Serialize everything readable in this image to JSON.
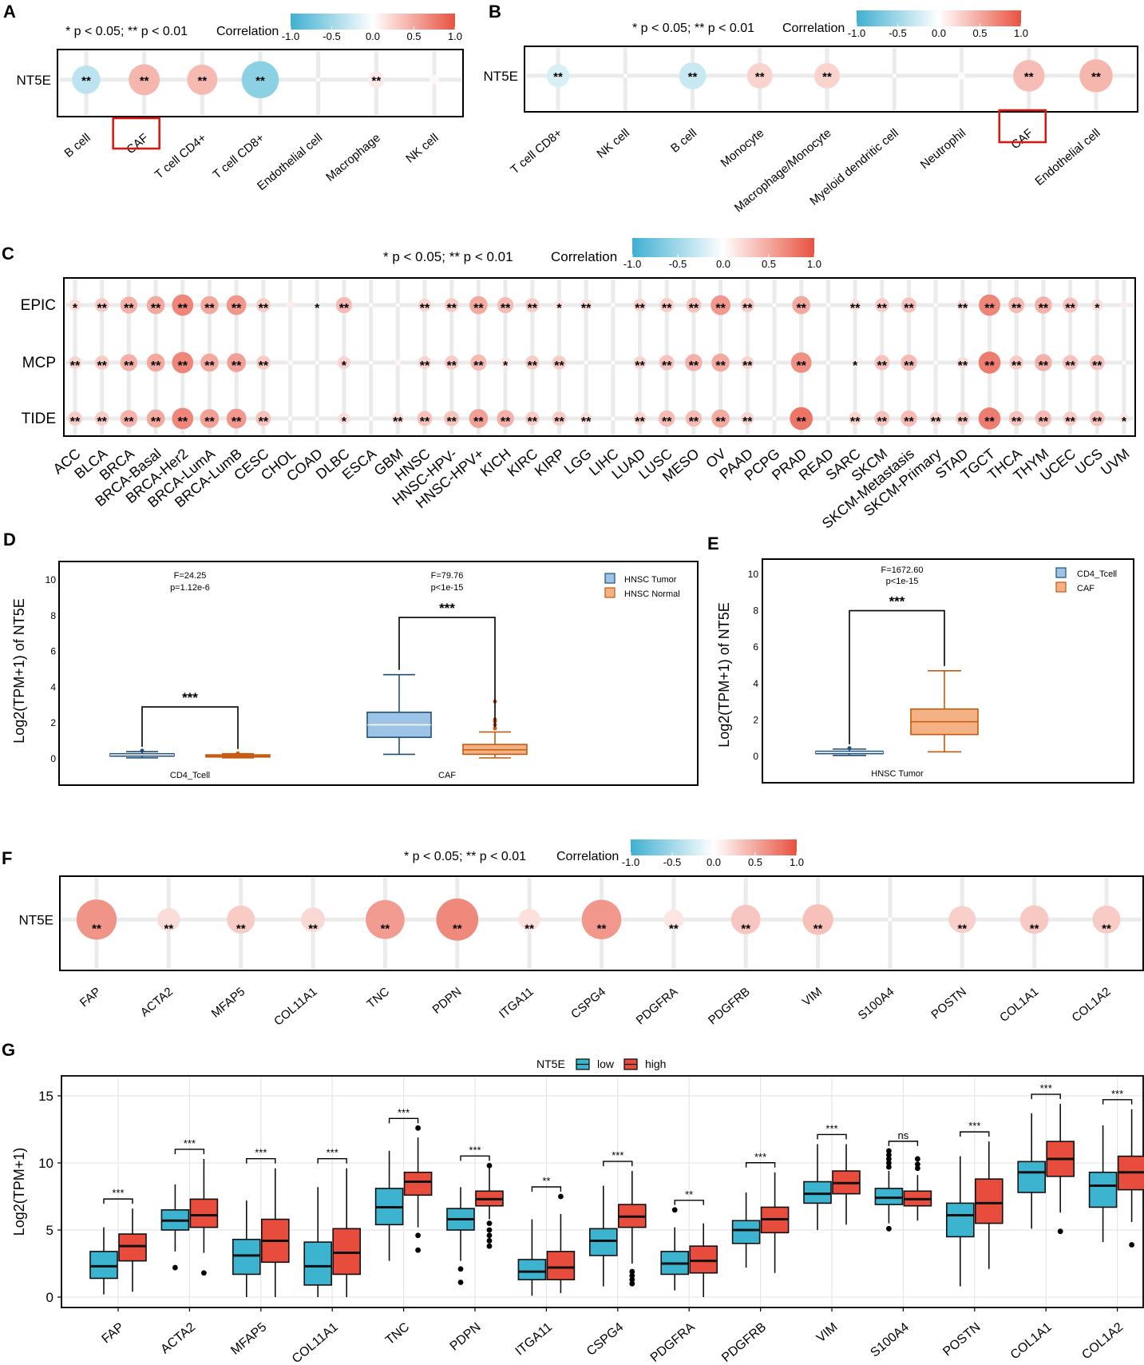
{
  "colors": {
    "neg": "#3FB0D2",
    "pos": "#E8523F",
    "low": "#3CB4CF",
    "high": "#E74C3C",
    "hnsc_tumor": "#9DC3E6",
    "hnsc_tumor_dark": "#1F4E79",
    "hnsc_normal": "#F4B183",
    "hnsc_normal_dark": "#C55A11"
  },
  "chart_data": [
    {
      "panel": "A",
      "type": "heatmap",
      "sig_note": "* p < 0.05; ** p < 0.01",
      "colorbar": {
        "title": "Correlation",
        "ticks": [
          "-1.0",
          "-0.5",
          "0.0",
          "0.5",
          "1.0"
        ],
        "range": [
          -1,
          1
        ]
      },
      "row": "NT5E",
      "categories": [
        "B cell",
        "CAF",
        "T cell CD4+",
        "T cell CD8+",
        "Endothelial cell",
        "Macrophage",
        "NK cell"
      ],
      "values": [
        -0.35,
        0.42,
        0.4,
        -0.6,
        0.0,
        0.12,
        0.04
      ],
      "labels": [
        "**",
        "**",
        "**",
        "**",
        "",
        "**",
        ""
      ],
      "highlight": "CAF"
    },
    {
      "panel": "B",
      "type": "heatmap",
      "sig_note": "* p < 0.05; ** p < 0.01",
      "colorbar": {
        "title": "Correlation",
        "ticks": [
          "-1.0",
          "-0.5",
          "0.0",
          "0.5",
          "1.0"
        ],
        "range": [
          -1,
          1
        ]
      },
      "row": "NT5E",
      "categories": [
        "T cell CD8+",
        "NK cell",
        "B cell",
        "Monocyte",
        "Macrophage/Monocyte",
        "Myeloid dendritic cell",
        "Neutrophil",
        "CAF",
        "Endothelial cell"
      ],
      "values": [
        -0.2,
        0.0,
        -0.28,
        0.25,
        0.25,
        0.0,
        0.02,
        0.38,
        0.42
      ],
      "labels": [
        "**",
        "",
        "**",
        "**",
        "**",
        "",
        "",
        "**",
        "**"
      ],
      "highlight": "CAF"
    },
    {
      "panel": "C",
      "type": "heatmap",
      "sig_note": "* p < 0.05; ** p < 0.01",
      "colorbar": {
        "title": "Correlation",
        "ticks": [
          "-1.0",
          "-0.5",
          "0.0",
          "0.5",
          "1.0"
        ],
        "range": [
          -1,
          1
        ]
      },
      "rows": [
        "EPIC",
        "MCP",
        "TIDE"
      ],
      "categories": [
        "ACC",
        "BLCA",
        "BRCA",
        "BRCA-Basal",
        "BRCA-Her2",
        "BRCA-LumA",
        "BRCA-LumB",
        "CESC",
        "CHOL",
        "COAD",
        "DLBC",
        "ESCA",
        "GBM",
        "HNSC",
        "HNSC-HPV-",
        "HNSC-HPV+",
        "KICH",
        "KIRC",
        "KIRP",
        "LGG",
        "LIHC",
        "LUAD",
        "LUSC",
        "MESO",
        "OV",
        "PAAD",
        "PCPG",
        "PRAD",
        "READ",
        "SARC",
        "SKCM",
        "SKCM-Metastasis",
        "SKCM-Primary",
        "STAD",
        "TGCT",
        "THCA",
        "THYM",
        "UCEC",
        "UCS",
        "UVM"
      ],
      "values": [
        [
          0.2,
          0.3,
          0.45,
          0.5,
          0.7,
          0.5,
          0.6,
          0.3,
          0.1,
          0.05,
          0.4,
          0.02,
          0.0,
          0.25,
          0.3,
          0.5,
          0.4,
          0.3,
          0.15,
          0.2,
          0.0,
          0.25,
          0.3,
          0.35,
          0.6,
          0.3,
          0.0,
          0.5,
          0.0,
          0.2,
          0.3,
          0.35,
          0.0,
          0.2,
          0.7,
          0.4,
          0.45,
          0.35,
          0.2,
          0.1
        ],
        [
          0.25,
          0.3,
          0.45,
          0.5,
          0.7,
          0.5,
          0.55,
          0.3,
          0.05,
          0.0,
          0.25,
          0.0,
          0.05,
          0.25,
          0.3,
          0.4,
          0.15,
          0.3,
          0.3,
          0.0,
          0.0,
          0.25,
          0.35,
          0.45,
          0.5,
          0.25,
          0.0,
          0.65,
          0.0,
          0.1,
          0.35,
          0.4,
          0.0,
          0.2,
          0.75,
          0.3,
          0.45,
          0.35,
          0.35,
          0.0
        ],
        [
          0.3,
          0.3,
          0.45,
          0.5,
          0.7,
          0.55,
          0.6,
          0.35,
          0.0,
          0.0,
          0.2,
          0.0,
          0.2,
          0.35,
          0.35,
          0.55,
          0.45,
          0.3,
          0.3,
          0.2,
          0.0,
          0.25,
          0.4,
          0.4,
          0.5,
          0.25,
          0.0,
          0.8,
          0.0,
          0.25,
          0.35,
          0.4,
          0.25,
          0.3,
          0.75,
          0.35,
          0.4,
          0.3,
          0.35,
          0.15
        ]
      ],
      "labels": [
        [
          "*",
          "**",
          "**",
          "**",
          "**",
          "**",
          "**",
          "**",
          "",
          "*",
          "**",
          "",
          "",
          "**",
          "**",
          "**",
          "**",
          "**",
          "*",
          "**",
          "",
          "**",
          "**",
          "**",
          "**",
          "**",
          "",
          "**",
          "",
          "**",
          "**",
          "**",
          "",
          "**",
          "**",
          "**",
          "**",
          "**",
          "*",
          ""
        ],
        [
          "**",
          "**",
          "**",
          "**",
          "**",
          "**",
          "**",
          "**",
          "",
          "",
          "*",
          "",
          "",
          "**",
          "**",
          "**",
          "*",
          "**",
          "**",
          "",
          "",
          "**",
          "**",
          "**",
          "**",
          "**",
          "",
          "**",
          "",
          "*",
          "**",
          "**",
          "",
          "**",
          "**",
          "**",
          "**",
          "**",
          "**",
          ""
        ],
        [
          "**",
          "**",
          "**",
          "**",
          "**",
          "**",
          "**",
          "**",
          "",
          "",
          "*",
          "",
          "**",
          "**",
          "**",
          "**",
          "**",
          "**",
          "**",
          "**",
          "",
          "**",
          "**",
          "**",
          "**",
          "**",
          "",
          "**",
          "",
          "**",
          "**",
          "**",
          "**",
          "**",
          "**",
          "**",
          "**",
          "**",
          "**",
          "*"
        ]
      ]
    },
    {
      "panel": "D",
      "type": "box",
      "ylabel": "Log2(TPM+1) of NT5E",
      "ylim": [
        0,
        10
      ],
      "yticks": [
        "0",
        "2",
        "4",
        "6",
        "8",
        "10"
      ],
      "legend": [
        "HNSC Tumor",
        "HNSC Normal"
      ],
      "groups": [
        {
          "name": "CD4_Tcell",
          "stat": "F=24.25",
          "p": "p=1.12e-6",
          "sig": "***",
          "boxes": [
            {
              "series": "HNSC Tumor",
              "min": 0.05,
              "q1": 0.15,
              "median": 0.22,
              "q3": 0.28,
              "max": 0.4,
              "outliers": [
                0.45
              ]
            },
            {
              "series": "HNSC Normal",
              "min": 0.05,
              "q1": 0.1,
              "median": 0.15,
              "q3": 0.22,
              "max": 0.28,
              "outliers": [
                0.3
              ]
            }
          ]
        },
        {
          "name": "CAF",
          "stat": "F=79.76",
          "p": "p<1e-15",
          "sig": "***",
          "boxes": [
            {
              "series": "HNSC Tumor",
              "min": 0.25,
              "q1": 1.2,
              "median": 1.9,
              "q3": 2.6,
              "max": 4.7,
              "outliers": []
            },
            {
              "series": "HNSC Normal",
              "min": 0.05,
              "q1": 0.25,
              "median": 0.5,
              "q3": 0.8,
              "max": 1.5,
              "outliers": [
                1.7,
                1.9,
                2.1,
                2.2,
                3.2
              ]
            }
          ]
        }
      ]
    },
    {
      "panel": "E",
      "type": "box",
      "ylabel": "Log2(TPM+1) of NT5E",
      "ylim": [
        0,
        10
      ],
      "yticks": [
        "0",
        "2",
        "4",
        "6",
        "8",
        "10"
      ],
      "legend": [
        "CD4_Tcell",
        "CAF"
      ],
      "stat": "F=1672.60",
      "p": "p<1e-15",
      "sig": "***",
      "group": "HNSC Tumor",
      "boxes": [
        {
          "series": "CD4_Tcell",
          "min": 0.05,
          "q1": 0.15,
          "median": 0.22,
          "q3": 0.28,
          "max": 0.4,
          "outliers": [
            0.45
          ]
        },
        {
          "series": "CAF",
          "min": 0.25,
          "q1": 1.2,
          "median": 1.9,
          "q3": 2.6,
          "max": 4.7,
          "outliers": []
        }
      ]
    },
    {
      "panel": "F",
      "type": "heatmap",
      "sig_note": "* p < 0.05; ** p < 0.01",
      "colorbar": {
        "title": "Correlation",
        "ticks": [
          "-1.0",
          "-0.5",
          "0.0",
          "0.5",
          "1.0"
        ],
        "range": [
          -1,
          1
        ]
      },
      "row": "NT5E",
      "categories": [
        "FAP",
        "ACTA2",
        "MFAP5",
        "COL11A1",
        "TNC",
        "PDPN",
        "ITGA11",
        "CSPG4",
        "PDGFRA",
        "PDGFRB",
        "VIM",
        "S100A4",
        "POSTN",
        "COL1A1",
        "COL1A2"
      ],
      "values": [
        0.62,
        0.2,
        0.3,
        0.22,
        0.58,
        0.68,
        0.18,
        0.6,
        0.15,
        0.33,
        0.36,
        0.0,
        0.28,
        0.31,
        0.3
      ],
      "labels": [
        "**",
        "**",
        "**",
        "**",
        "**",
        "**",
        "**",
        "**",
        "**",
        "**",
        "**",
        "",
        "**",
        "**",
        "**"
      ]
    },
    {
      "panel": "G",
      "type": "box",
      "legend_title": "NT5E",
      "series": [
        "low",
        "high"
      ],
      "ylabel": "Log2(TPM+1)",
      "ylim": [
        0,
        16
      ],
      "yticks": [
        "0",
        "5",
        "10",
        "15"
      ],
      "categories": [
        "FAP",
        "ACTA2",
        "MFAP5",
        "COL11A1",
        "TNC",
        "PDPN",
        "ITGA11",
        "CSPG4",
        "PDGFRA",
        "PDGFRB",
        "VIM",
        "S100A4",
        "POSTN",
        "COL1A1",
        "COL1A2"
      ],
      "sig": [
        "***",
        "***",
        "***",
        "***",
        "***",
        "***",
        "**",
        "***",
        "**",
        "***",
        "***",
        "ns",
        "***",
        "***",
        "***"
      ],
      "low": [
        {
          "min": 0.2,
          "q1": 1.4,
          "median": 2.3,
          "q3": 3.4,
          "max": 5.2,
          "outliers": []
        },
        {
          "min": 3.4,
          "q1": 5.0,
          "median": 5.7,
          "q3": 6.5,
          "max": 8.4,
          "outliers": [
            2.2
          ]
        },
        {
          "min": 0.0,
          "q1": 1.7,
          "median": 3.1,
          "q3": 4.3,
          "max": 7.2,
          "outliers": []
        },
        {
          "min": 0.0,
          "q1": 0.9,
          "median": 2.3,
          "q3": 4.1,
          "max": 8.2,
          "outliers": []
        },
        {
          "min": 2.7,
          "q1": 5.4,
          "median": 6.7,
          "q3": 8.1,
          "max": 10.9,
          "outliers": []
        },
        {
          "min": 2.7,
          "q1": 5.0,
          "median": 5.8,
          "q3": 6.6,
          "max": 8.2,
          "outliers": [
            2.1,
            1.1
          ]
        },
        {
          "min": 0.1,
          "q1": 1.3,
          "median": 1.9,
          "q3": 2.8,
          "max": 5.8,
          "outliers": []
        },
        {
          "min": 0.8,
          "q1": 3.1,
          "median": 4.2,
          "q3": 5.1,
          "max": 8.3,
          "outliers": []
        },
        {
          "min": 0.5,
          "q1": 1.7,
          "median": 2.5,
          "q3": 3.4,
          "max": 5.2,
          "outliers": [
            6.5
          ]
        },
        {
          "min": 2.2,
          "q1": 4.0,
          "median": 5.0,
          "q3": 5.7,
          "max": 7.8,
          "outliers": []
        },
        {
          "min": 5.0,
          "q1": 7.0,
          "median": 7.7,
          "q3": 8.6,
          "max": 11.4,
          "outliers": []
        },
        {
          "min": 5.5,
          "q1": 6.9,
          "median": 7.4,
          "q3": 8.1,
          "max": 9.4,
          "outliers": [
            9.7,
            10.0,
            10.3,
            10.6,
            10.9,
            5.1
          ]
        },
        {
          "min": 0.8,
          "q1": 4.5,
          "median": 6.1,
          "q3": 7.0,
          "max": 10.5,
          "outliers": []
        },
        {
          "min": 5.1,
          "q1": 7.8,
          "median": 9.3,
          "q3": 10.1,
          "max": 13.7,
          "outliers": []
        },
        {
          "min": 4.1,
          "q1": 6.7,
          "median": 8.3,
          "q3": 9.3,
          "max": 12.8,
          "outliers": []
        }
      ],
      "high": [
        {
          "min": 0.4,
          "q1": 2.7,
          "median": 3.8,
          "q3": 4.7,
          "max": 6.6,
          "outliers": []
        },
        {
          "min": 3.3,
          "q1": 5.2,
          "median": 6.1,
          "q3": 7.3,
          "max": 10.3,
          "outliers": [
            1.8
          ]
        },
        {
          "min": 0.0,
          "q1": 2.6,
          "median": 4.2,
          "q3": 5.8,
          "max": 9.6,
          "outliers": []
        },
        {
          "min": 0.0,
          "q1": 1.7,
          "median": 3.3,
          "q3": 5.1,
          "max": 9.6,
          "outliers": []
        },
        {
          "min": 5.2,
          "q1": 7.6,
          "median": 8.6,
          "q3": 9.3,
          "max": 11.9,
          "outliers": [
            12.6,
            4.6,
            3.5
          ]
        },
        {
          "min": 5.8,
          "q1": 6.8,
          "median": 7.3,
          "q3": 7.9,
          "max": 9.6,
          "outliers": [
            9.8,
            5.5,
            5.0,
            4.6,
            4.2,
            3.8
          ]
        },
        {
          "min": 0.3,
          "q1": 1.3,
          "median": 2.2,
          "q3": 3.4,
          "max": 6.2,
          "outliers": [
            7.5
          ]
        },
        {
          "min": 2.5,
          "q1": 5.2,
          "median": 6.0,
          "q3": 6.9,
          "max": 9.4,
          "outliers": [
            1.9,
            1.6,
            1.3,
            1.0
          ]
        },
        {
          "min": 0.0,
          "q1": 1.8,
          "median": 2.7,
          "q3": 3.8,
          "max": 5.5,
          "outliers": []
        },
        {
          "min": 1.8,
          "q1": 4.8,
          "median": 5.8,
          "q3": 6.7,
          "max": 9.3,
          "outliers": []
        },
        {
          "min": 5.4,
          "q1": 7.7,
          "median": 8.5,
          "q3": 9.4,
          "max": 11.4,
          "outliers": []
        },
        {
          "min": 5.7,
          "q1": 6.8,
          "median": 7.3,
          "q3": 7.9,
          "max": 9.1,
          "outliers": [
            9.6,
            9.9,
            10.3
          ]
        },
        {
          "min": 2.1,
          "q1": 5.5,
          "median": 7.0,
          "q3": 8.8,
          "max": 11.6,
          "outliers": []
        },
        {
          "min": 6.3,
          "q1": 9.0,
          "median": 10.3,
          "q3": 11.6,
          "max": 14.4,
          "outliers": [
            4.9
          ]
        },
        {
          "min": 5.6,
          "q1": 8.0,
          "median": 9.3,
          "q3": 10.5,
          "max": 14.0,
          "outliers": [
            3.9
          ]
        }
      ]
    }
  ]
}
